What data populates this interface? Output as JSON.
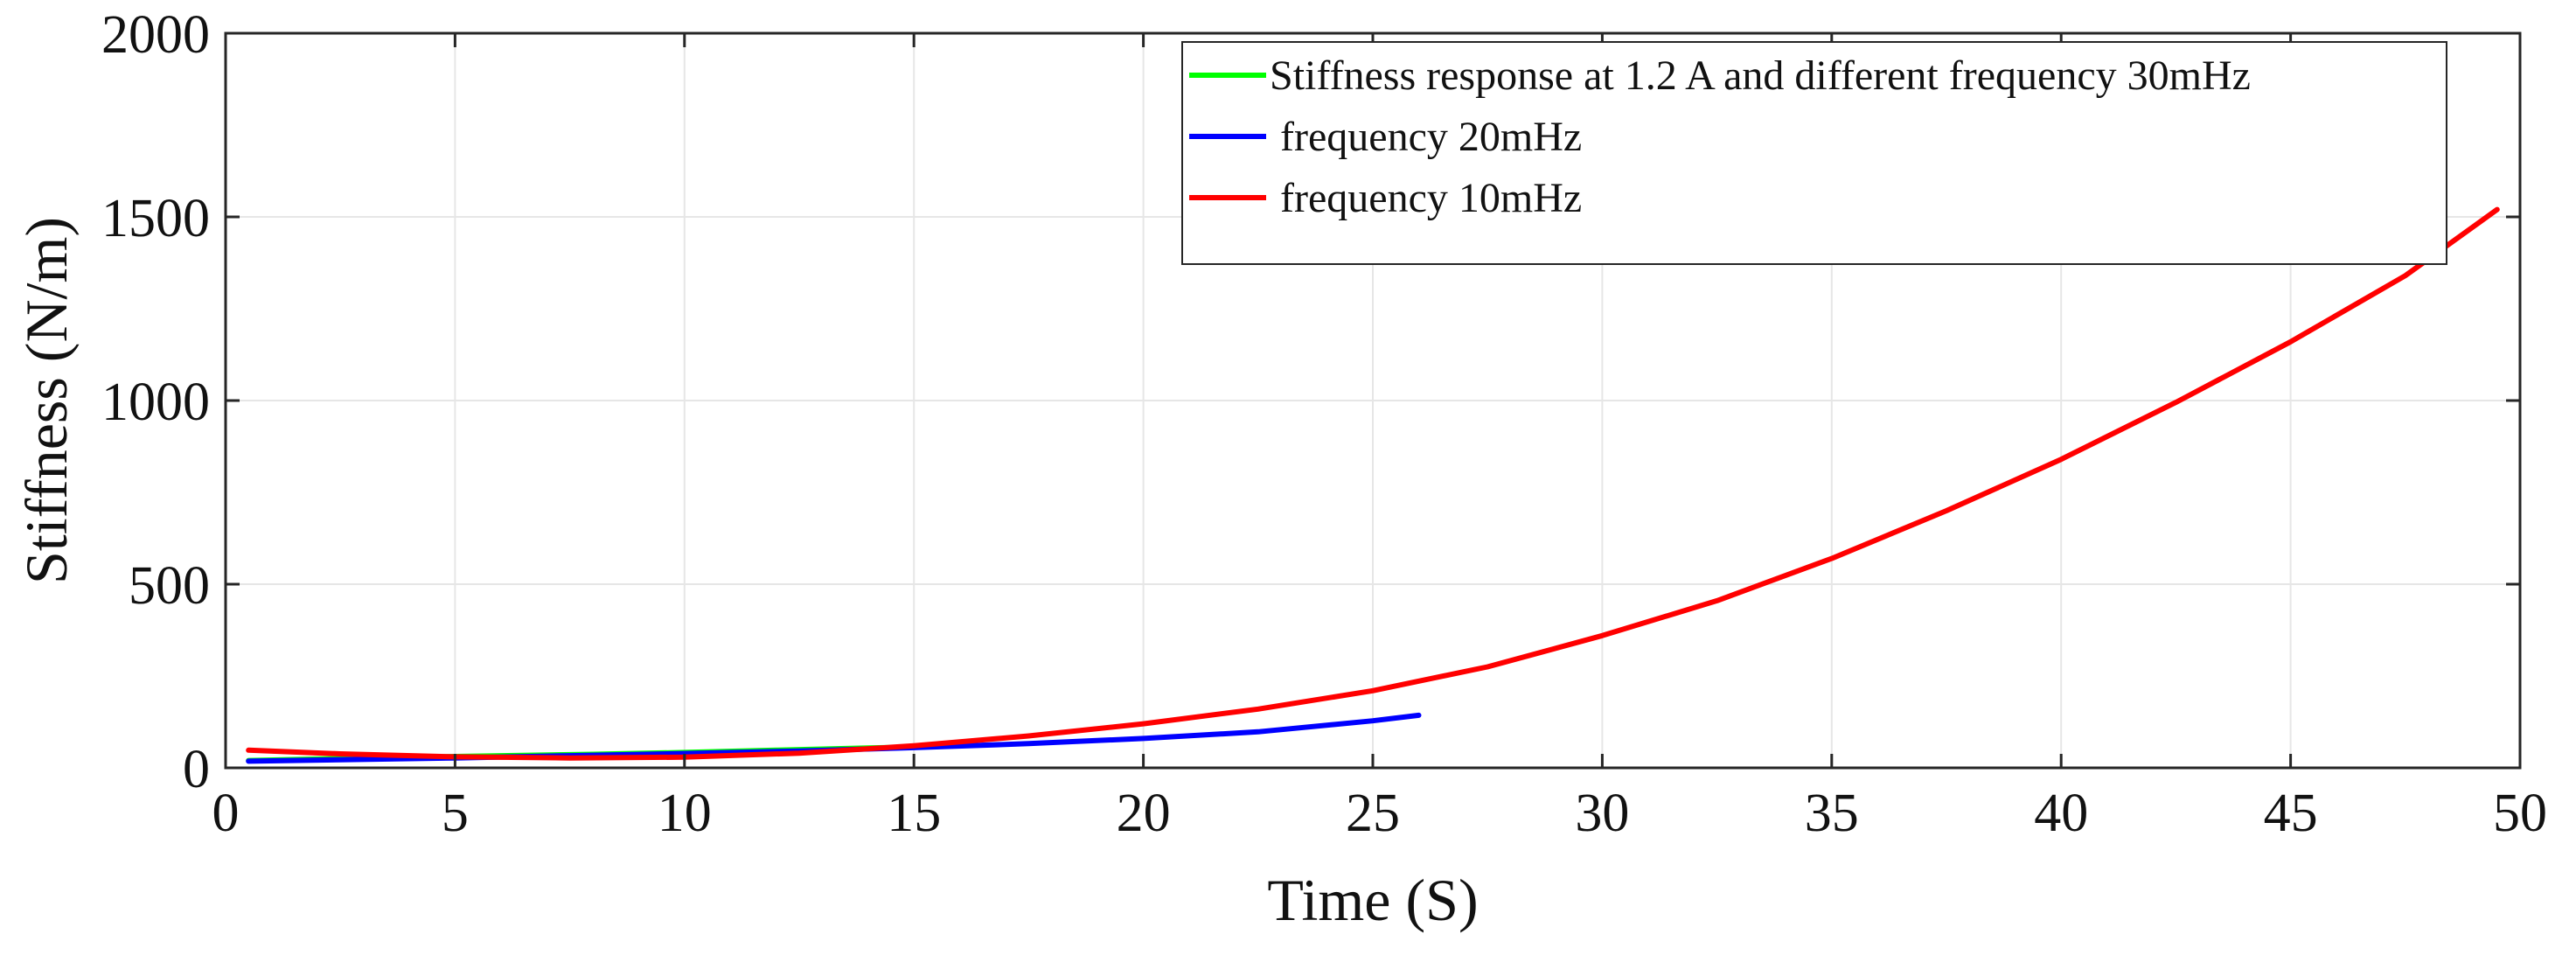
{
  "chart_data": {
    "type": "line",
    "title": "",
    "xlabel": "Time (S)",
    "ylabel": "Stiffness (N/m)",
    "xlim": [
      0,
      50
    ],
    "ylim": [
      0,
      2000
    ],
    "xticks": [
      0,
      5,
      10,
      15,
      20,
      25,
      30,
      35,
      40,
      45,
      50
    ],
    "yticks": [
      0,
      500,
      1000,
      1500,
      2000
    ],
    "xtick_labels": [
      "0",
      "5",
      "10",
      "15",
      "20",
      "25",
      "30",
      "35",
      "40",
      "45",
      "50"
    ],
    "ytick_labels": [
      "0",
      "500",
      "1000",
      "1500",
      "2000"
    ],
    "grid": true,
    "legend_position": "top-right",
    "series": [
      {
        "name": "Stiffness response at 1.2 A and different frequency 30mHz",
        "color": "#00ff00",
        "x": [
          0.5,
          2,
          4,
          5,
          6,
          8,
          10,
          12,
          14,
          16
        ],
        "y": [
          20,
          24,
          28,
          31,
          33,
          37,
          42,
          48,
          54,
          60
        ]
      },
      {
        "name": " frequency 20mHz",
        "color": "#0000ff",
        "x": [
          0.5,
          2.5,
          5,
          7.5,
          10,
          12.5,
          15,
          17.5,
          20,
          22.5,
          25,
          26
        ],
        "y": [
          18,
          22,
          27,
          33,
          39,
          46,
          55,
          66,
          80,
          98,
          128,
          143
        ]
      },
      {
        "name": " frequency 10mHz",
        "color": "#ff0000",
        "x": [
          0.5,
          2.5,
          5,
          7.5,
          10,
          12.5,
          15,
          17.5,
          20,
          22.5,
          25,
          27.5,
          30,
          32.5,
          35,
          37.5,
          40,
          42.5,
          45,
          47.5,
          49.5
        ],
        "y": [
          48,
          38,
          30,
          27,
          29,
          40,
          60,
          87,
          120,
          160,
          210,
          275,
          360,
          455,
          570,
          700,
          840,
          995,
          1160,
          1340,
          1520
        ]
      }
    ]
  }
}
